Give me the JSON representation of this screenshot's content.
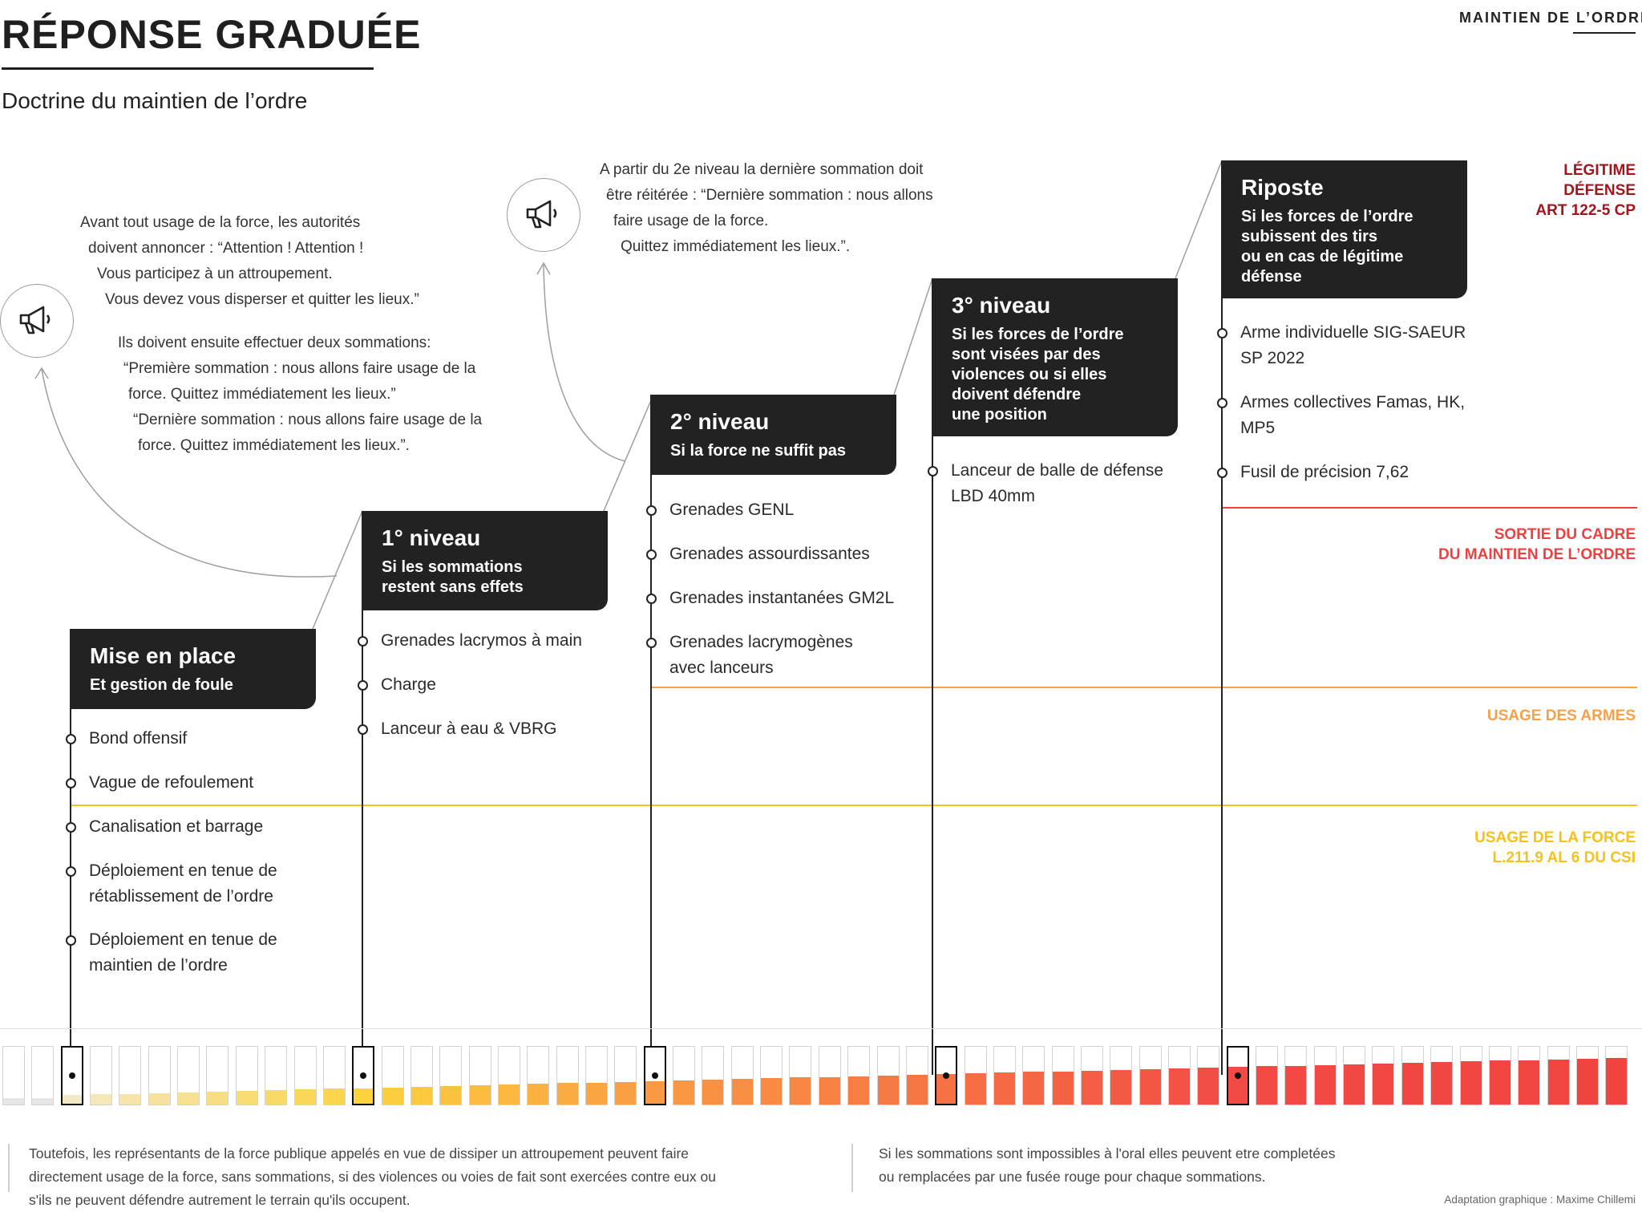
{
  "header": {
    "title": "RÉPONSE GRADUÉE",
    "subtitle": "Doctrine du maintien de l’ordre",
    "brand": "MAINTIEN DE L’ORDRE"
  },
  "notes": {
    "left": [
      "Avant tout usage de la force, les autorités",
      "doivent annoncer : “Attention ! Attention !",
      "Vous participez à un attroupement.",
      "Vous devez vous disperser et quitter les lieux.”",
      "Ils doivent ensuite effectuer deux sommations:",
      "“Première sommation :  nous allons faire usage de la",
      "force. Quittez immédiatement les lieux.”",
      "“Dernière sommation : nous allons faire usage de la",
      "force. Quittez immédiatement les lieux.”."
    ],
    "right": [
      "A partir du 2e niveau la dernière sommation doit",
      "être réitérée : “Dernière sommation :  nous allons",
      "faire usage de la force.",
      "Quittez immédiatement les lieux.”."
    ],
    "icon": "megaphone-icon"
  },
  "levels": [
    {
      "title": "Mise en place",
      "subtitle": [
        "Et gestion de foule"
      ],
      "items": [
        "Bond offensif",
        "Vague de refoulement",
        "Canalisation et barrage",
        "Déploiement en tenue de|rétablissement de l’ordre",
        "Déploiement en tenue de|maintien de l’ordre"
      ]
    },
    {
      "title": "1° niveau",
      "subtitle": [
        "Si les sommations",
        "restent sans effets"
      ],
      "items": [
        "Grenades lacrymos à main",
        "Charge",
        "Lanceur à eau & VBRG"
      ]
    },
    {
      "title": "2° niveau",
      "subtitle": [
        "Si la force ne suffit pas"
      ],
      "items": [
        "Grenades GENL",
        "Grenades assourdissantes",
        "Grenades instantanées GM2L",
        "Grenades lacrymogènes|avec lanceurs"
      ]
    },
    {
      "title": "3° niveau",
      "subtitle": [
        "Si les forces de l’ordre",
        "sont visées par des",
        "violences ou si elles",
        "doivent défendre",
        "une position"
      ],
      "items": [
        "Lanceur de balle de défense|LBD 40mm"
      ]
    },
    {
      "title": "Riposte",
      "subtitle": [
        "Si les forces de l’ordre",
        "subissent des tirs",
        "ou en cas de légitime",
        "défense"
      ],
      "items": [
        "Arme individuelle SIG-SAEUR|SP 2022",
        "Armes collectives Famas, HK,|MP5",
        "Fusil de précision 7,62"
      ]
    }
  ],
  "zones": [
    {
      "label": [
        "LÉGITIME",
        "DÉFENSE",
        "ART 122-5 CP"
      ],
      "color": "#a3141b"
    },
    {
      "label": [
        "SORTIE DU CADRE",
        "DU MAINTIEN DE L’ORDRE"
      ],
      "color": "#ef3f3f"
    },
    {
      "label": [
        "USAGE DES ARMES"
      ],
      "color": "#f7a04a"
    },
    {
      "label": [
        "USAGE DE LA FORCE",
        "L.211.9 AL 6 DU CSI"
      ],
      "color": "#f6c11a"
    }
  ],
  "meter": {
    "bar_count": 56,
    "level_markers_at_bar": [
      2,
      12,
      22,
      32,
      42
    ],
    "colors": {
      "start": "#f4e9c6",
      "yellow": "#fcd33d",
      "orange": "#f99a42",
      "red": "#f24a45"
    }
  },
  "footer": {
    "left": [
      "Toutefois, les représentants de la force publique appelés en vue de dissiper un attroupement peuvent faire",
      "directement usage de la force, sans sommations, si des violences ou voies de fait sont exercées contre eux ou",
      "s'ils ne peuvent défendre autrement le terrain qu'ils occupent."
    ],
    "right": [
      "Si les sommations sont impossibles à l'oral elles peuvent etre completées",
      "ou remplacées par une fusée rouge pour chaque sommations."
    ],
    "credit": "Adaptation graphique : Maxime Chillemi"
  }
}
